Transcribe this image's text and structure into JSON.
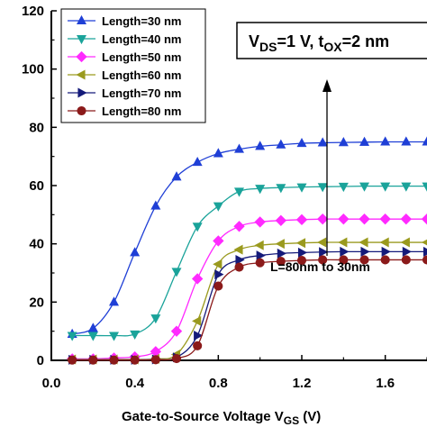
{
  "chart_data": {
    "type": "line",
    "title": "",
    "xlabel": "Gate-to-Source Voltage V",
    "xlabel_sub": "GS",
    "xlabel_unit": " (V)",
    "ylabel": "",
    "xlim": [
      0,
      1.8
    ],
    "ylim": [
      0,
      120
    ],
    "x_ticks": [
      "0.0",
      "0.4",
      "0.8",
      "1.2",
      "1.6"
    ],
    "x_tick_values": [
      0,
      0.4,
      0.8,
      1.2,
      1.6
    ],
    "y_ticks": [
      "0",
      "20",
      "40",
      "60",
      "80",
      "100",
      "120"
    ],
    "y_tick_values": [
      0,
      20,
      40,
      60,
      80,
      100,
      120
    ],
    "legend_position": "top-left",
    "grid": false,
    "annotation_box": {
      "text_v": "V",
      "text_ds": "DS",
      "text_mid": "=1 V, t",
      "text_ox": "OX",
      "text_end": "=2 nm"
    },
    "arrow_label": "L=80nm to 30nm",
    "x": [
      0.1,
      0.2,
      0.3,
      0.4,
      0.5,
      0.6,
      0.7,
      0.8,
      0.9,
      1.0,
      1.1,
      1.2,
      1.3,
      1.4,
      1.5,
      1.6,
      1.7,
      1.8
    ],
    "series": [
      {
        "name": "Length=30 nm",
        "marker": "triangle-up",
        "color": "#1f3fd6",
        "values": [
          9,
          11,
          20,
          37,
          53,
          63,
          68,
          71,
          72.5,
          73.5,
          74,
          74.5,
          74.7,
          74.8,
          74.9,
          75,
          75,
          75
        ]
      },
      {
        "name": "Length=40 nm",
        "marker": "triangle-down",
        "color": "#1aa39a",
        "values": [
          8.5,
          8.5,
          8.5,
          9,
          14.5,
          30.5,
          46,
          53,
          58,
          59,
          59.3,
          59.5,
          59.6,
          59.7,
          59.8,
          59.8,
          59.8,
          59.8
        ]
      },
      {
        "name": "Length=50 nm",
        "marker": "diamond",
        "color": "#ff2aff",
        "values": [
          0.5,
          0.5,
          0.8,
          1.2,
          3,
          10,
          28,
          41,
          46,
          47.5,
          48,
          48.3,
          48.5,
          48.5,
          48.5,
          48.5,
          48.5,
          48.5
        ]
      },
      {
        "name": "Length=60 nm",
        "marker": "triangle-left",
        "color": "#9a9a1e",
        "values": [
          0.3,
          0.3,
          0.3,
          0.3,
          0.5,
          2,
          13.5,
          33,
          38,
          39.5,
          40,
          40.3,
          40.5,
          40.5,
          40.5,
          40.5,
          40.5,
          40.5
        ]
      },
      {
        "name": "Length=70 nm",
        "marker": "triangle-right",
        "color": "#141a7a",
        "values": [
          0.2,
          0.2,
          0.2,
          0.2,
          0.3,
          1,
          8.5,
          29.5,
          34.5,
          36,
          36.7,
          37,
          37.2,
          37.3,
          37.3,
          37.3,
          37.3,
          37.3
        ]
      },
      {
        "name": "Length=80 nm",
        "marker": "circle",
        "color": "#8b1a1a",
        "values": [
          0.1,
          0.1,
          0.1,
          0.1,
          0.2,
          0.6,
          5,
          25.5,
          32,
          33.5,
          34,
          34.3,
          34.5,
          34.5,
          34.5,
          34.5,
          34.5,
          34.5
        ]
      }
    ]
  }
}
